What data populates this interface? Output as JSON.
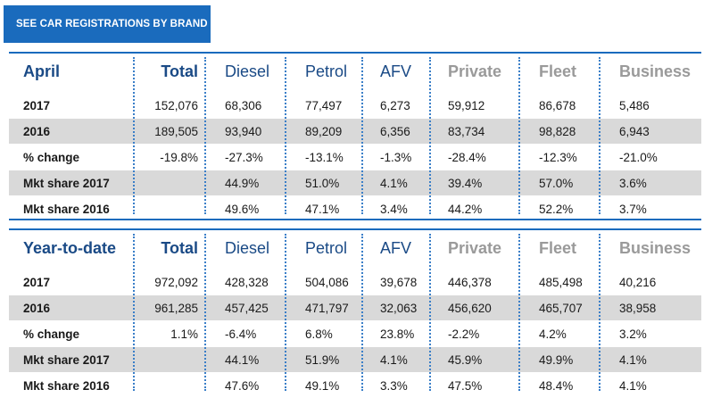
{
  "cta": {
    "label": "SEE CAR REGISTRATIONS BY BRAND"
  },
  "chart_data": [
    {
      "type": "table",
      "columns": [
        "April",
        "Total",
        "Diesel",
        "Petrol",
        "AFV",
        "Private",
        "Fleet",
        "Business"
      ],
      "rows": [
        [
          "2017",
          "152,076",
          "68,306",
          "77,497",
          "6,273",
          "59,912",
          "86,678",
          "5,486"
        ],
        [
          "2016",
          "189,505",
          "93,940",
          "89,209",
          "6,356",
          "83,734",
          "98,828",
          "6,943"
        ],
        [
          "% change",
          "-19.8%",
          "-27.3%",
          "-13.1%",
          "-1.3%",
          "-28.4%",
          "-12.3%",
          "-21.0%"
        ],
        [
          "Mkt share 2017",
          "",
          "44.9%",
          "51.0%",
          "4.1%",
          "39.4%",
          "57.0%",
          "3.6%"
        ],
        [
          "Mkt share 2016",
          "",
          "49.6%",
          "47.1%",
          "3.4%",
          "44.2%",
          "52.2%",
          "3.7%"
        ]
      ]
    },
    {
      "type": "table",
      "columns": [
        "Year-to-date",
        "Total",
        "Diesel",
        "Petrol",
        "AFV",
        "Private",
        "Fleet",
        "Business"
      ],
      "rows": [
        [
          "2017",
          "972,092",
          "428,328",
          "504,086",
          "39,678",
          "446,378",
          "485,498",
          "40,216"
        ],
        [
          "2016",
          "961,285",
          "457,425",
          "471,797",
          "32,063",
          "456,620",
          "465,707",
          "38,958"
        ],
        [
          "% change",
          "1.1%",
          "-6.4%",
          "6.8%",
          "23.8%",
          "-2.2%",
          "4.2%",
          "3.2%"
        ],
        [
          "Mkt share 2017",
          "",
          "44.1%",
          "51.9%",
          "4.1%",
          "45.9%",
          "49.9%",
          "4.1%"
        ],
        [
          "Mkt share 2016",
          "",
          "47.6%",
          "49.1%",
          "3.3%",
          "47.5%",
          "48.4%",
          "4.1%"
        ]
      ]
    }
  ],
  "colors": {
    "accent": "#1a6bbd",
    "header_blue": "#1a4a86",
    "header_grey": "#9a9a9a",
    "shade": "#d9d9d9"
  }
}
